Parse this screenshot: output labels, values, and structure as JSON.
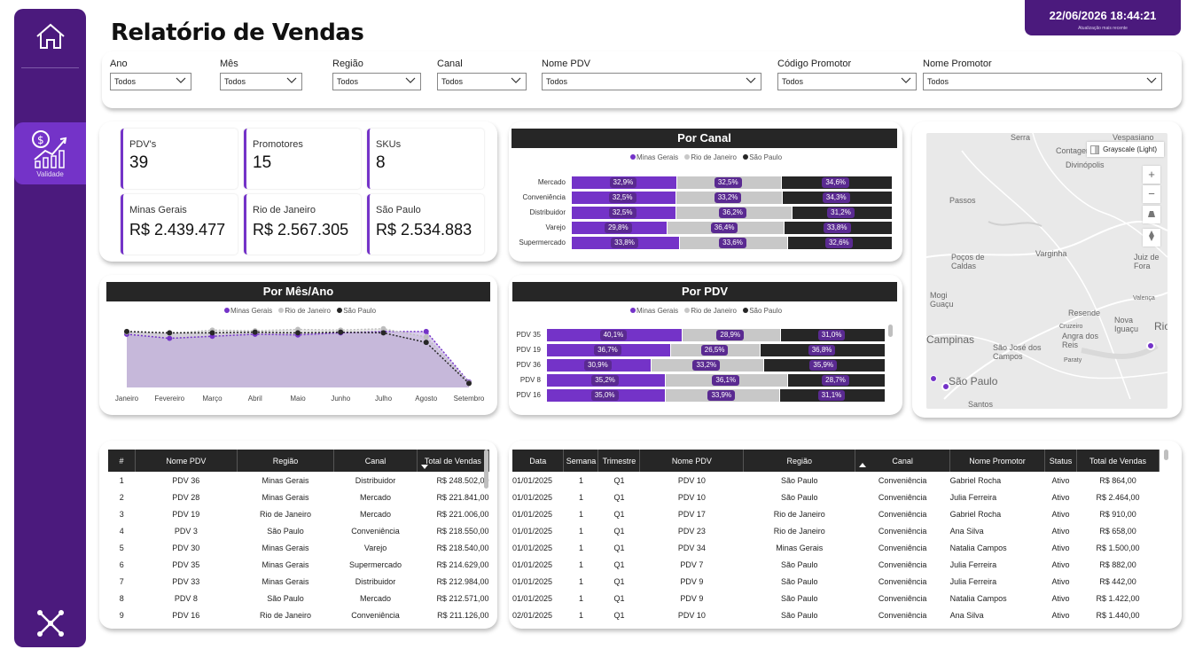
{
  "sidebar": {
    "home_icon": "home-icon",
    "active_item_label": "Validade",
    "active_item_icon": "sales-growth-icon",
    "bottom_icon": "network-icon"
  },
  "header": {
    "title": "Relatório de Vendas",
    "updated_at": "22/06/2026 18:44:21",
    "updated_caption": "Atualização mais recente"
  },
  "filters": [
    {
      "label": "Ano",
      "value": "Todos"
    },
    {
      "label": "Mês",
      "value": "Todos"
    },
    {
      "label": "Região",
      "value": "Todos"
    },
    {
      "label": "Canal",
      "value": "Todos"
    },
    {
      "label": "Nome PDV",
      "value": "Todos"
    },
    {
      "label": "Código Promotor",
      "value": "Todos"
    },
    {
      "label": "Nome Promotor",
      "value": "Todos"
    }
  ],
  "kpis": {
    "pdvs": {
      "label": "PDV's",
      "value": "39"
    },
    "promotores": {
      "label": "Promotores",
      "value": "15"
    },
    "skus": {
      "label": "SKUs",
      "value": "8"
    },
    "mg": {
      "label": "Minas Gerais",
      "value": "R$ 2.439.477"
    },
    "rj": {
      "label": "Rio de Janeiro",
      "value": "R$ 2.567.305"
    },
    "sp": {
      "label": "São Paulo",
      "value": "R$ 2.534.883"
    }
  },
  "colors": {
    "primary": "#7433c8",
    "sidebar": "#4b1a7d",
    "minas": "#7433c8",
    "rio": "#c8c8c8",
    "saopaulo": "#262626",
    "tag": "#5a2a91"
  },
  "series_names": [
    "Minas Gerais",
    "Rio de Janeiro",
    "São Paulo"
  ],
  "chart_data": [
    {
      "type": "bar",
      "stacked": "100%",
      "orientation": "horizontal",
      "title": "Por Canal",
      "legend": "top",
      "categories": [
        "Mercado",
        "Conveniência",
        "Distribuidor",
        "Varejo",
        "Supermercado"
      ],
      "series": [
        {
          "name": "Minas Gerais",
          "values": [
            32.9,
            32.5,
            32.5,
            29.8,
            33.8
          ]
        },
        {
          "name": "Rio de Janeiro",
          "values": [
            32.5,
            33.2,
            36.2,
            36.4,
            33.6
          ]
        },
        {
          "name": "São Paulo",
          "values": [
            34.6,
            34.3,
            31.2,
            33.8,
            32.6
          ]
        }
      ],
      "labels": [
        [
          "32,9%",
          "32,5%",
          "34,6%"
        ],
        [
          "32,5%",
          "33,2%",
          "34,3%"
        ],
        [
          "32,5%",
          "36,2%",
          "31,2%"
        ],
        [
          "29,8%",
          "36,4%",
          "33,8%"
        ],
        [
          "33,8%",
          "33,6%",
          "32,6%"
        ]
      ]
    },
    {
      "type": "area",
      "title": "Por Mês/Ano",
      "legend": "top",
      "categories": [
        "Janeiro",
        "Fevereiro",
        "Março",
        "Abril",
        "Maio",
        "Junho",
        "Julho",
        "Agosto",
        "Setembro"
      ],
      "ylim": [
        0,
        100
      ],
      "series": [
        {
          "name": "Minas Gerais",
          "values": [
            78,
            72,
            75,
            78,
            77,
            80,
            82,
            82,
            8
          ]
        },
        {
          "name": "Rio de Janeiro",
          "values": [
            81,
            79,
            84,
            83,
            85,
            84,
            86,
            74,
            7
          ]
        },
        {
          "name": "São Paulo",
          "values": [
            82,
            80,
            80,
            81,
            80,
            81,
            80,
            66,
            6
          ]
        }
      ]
    },
    {
      "type": "bar",
      "stacked": "100%",
      "orientation": "horizontal",
      "title": "Por PDV",
      "legend": "top",
      "categories": [
        "PDV 35",
        "PDV 19",
        "PDV 36",
        "PDV 8",
        "PDV 16"
      ],
      "series": [
        {
          "name": "Minas Gerais",
          "values": [
            40.1,
            36.7,
            30.9,
            35.2,
            35.0
          ]
        },
        {
          "name": "Rio de Janeiro",
          "values": [
            28.9,
            26.5,
            33.2,
            36.1,
            33.9
          ]
        },
        {
          "name": "São Paulo",
          "values": [
            31.0,
            36.8,
            35.9,
            28.7,
            31.1
          ]
        }
      ],
      "labels": [
        [
          "40,1%",
          "28,9%",
          "31,0%"
        ],
        [
          "36,7%",
          "26,5%",
          "36,8%"
        ],
        [
          "30,9%",
          "33,2%",
          "35,9%"
        ],
        [
          "35,2%",
          "36,1%",
          "28,7%"
        ],
        [
          "35,0%",
          "33,9%",
          "31,1%"
        ]
      ]
    }
  ],
  "map": {
    "style_label": "Grayscale (Light)",
    "places": [
      "Serra",
      "Contagem",
      "Divinópolis",
      "Vespasiano",
      "Passos",
      "Poços de Caldas",
      "Varginha",
      "Juiz de Fora",
      "Mogi Guaçu",
      "Resende",
      "Campinas",
      "São José dos Campos",
      "Angra dos Reis",
      "Nova Iguaçu",
      "Rio",
      "São Paulo",
      "Santos",
      "Cruzeiro",
      "Valença",
      "Paraty"
    ]
  },
  "pdv_table": {
    "columns": [
      "#",
      "Nome PDV",
      "Região",
      "Canal",
      "Total de Vendas"
    ],
    "rows": [
      [
        "1",
        "PDV 36",
        "Minas Gerais",
        "Distribuidor",
        "R$ 248.502,00"
      ],
      [
        "2",
        "PDV 28",
        "Minas Gerais",
        "Mercado",
        "R$ 221.841,00"
      ],
      [
        "3",
        "PDV 19",
        "Rio de Janeiro",
        "Mercado",
        "R$ 221.006,00"
      ],
      [
        "4",
        "PDV 3",
        "São Paulo",
        "Conveniência",
        "R$ 218.550,00"
      ],
      [
        "5",
        "PDV 30",
        "Minas Gerais",
        "Varejo",
        "R$ 218.540,00"
      ],
      [
        "6",
        "PDV 35",
        "Minas Gerais",
        "Supermercado",
        "R$ 214.629,00"
      ],
      [
        "7",
        "PDV 33",
        "Minas Gerais",
        "Distribuidor",
        "R$ 212.984,00"
      ],
      [
        "8",
        "PDV 8",
        "São Paulo",
        "Mercado",
        "R$ 212.571,00"
      ],
      [
        "9",
        "PDV 16",
        "Rio de Janeiro",
        "Conveniência",
        "R$ 211.126,00"
      ]
    ]
  },
  "detail_table": {
    "columns": [
      "Data",
      "Semana",
      "Trimestre",
      "Nome PDV",
      "Região",
      "Canal",
      "Nome Promotor",
      "Status",
      "Total de Vendas"
    ],
    "rows": [
      [
        "01/01/2025",
        "1",
        "Q1",
        "PDV 10",
        "São Paulo",
        "Conveniência",
        "Gabriel Rocha",
        "Ativo",
        "R$ 864,00"
      ],
      [
        "01/01/2025",
        "1",
        "Q1",
        "PDV 10",
        "São Paulo",
        "Conveniência",
        "Julia Ferreira",
        "Ativo",
        "R$ 2.464,00"
      ],
      [
        "01/01/2025",
        "1",
        "Q1",
        "PDV 17",
        "Rio de Janeiro",
        "Conveniência",
        "Gabriel Rocha",
        "Ativo",
        "R$ 910,00"
      ],
      [
        "01/01/2025",
        "1",
        "Q1",
        "PDV 23",
        "Rio de Janeiro",
        "Conveniência",
        "Ana Silva",
        "Ativo",
        "R$ 658,00"
      ],
      [
        "01/01/2025",
        "1",
        "Q1",
        "PDV 34",
        "Minas Gerais",
        "Conveniência",
        "Natalia Campos",
        "Ativo",
        "R$ 1.500,00"
      ],
      [
        "01/01/2025",
        "1",
        "Q1",
        "PDV 7",
        "São Paulo",
        "Conveniência",
        "Julia Ferreira",
        "Ativo",
        "R$ 882,00"
      ],
      [
        "01/01/2025",
        "1",
        "Q1",
        "PDV 9",
        "São Paulo",
        "Conveniência",
        "Julia Ferreira",
        "Ativo",
        "R$ 442,00"
      ],
      [
        "01/01/2025",
        "1",
        "Q1",
        "PDV 9",
        "São Paulo",
        "Conveniência",
        "Natalia Campos",
        "Ativo",
        "R$ 1.422,00"
      ],
      [
        "02/01/2025",
        "1",
        "Q1",
        "PDV 10",
        "São Paulo",
        "Conveniência",
        "Ana Silva",
        "Ativo",
        "R$ 1.440,00"
      ]
    ]
  }
}
